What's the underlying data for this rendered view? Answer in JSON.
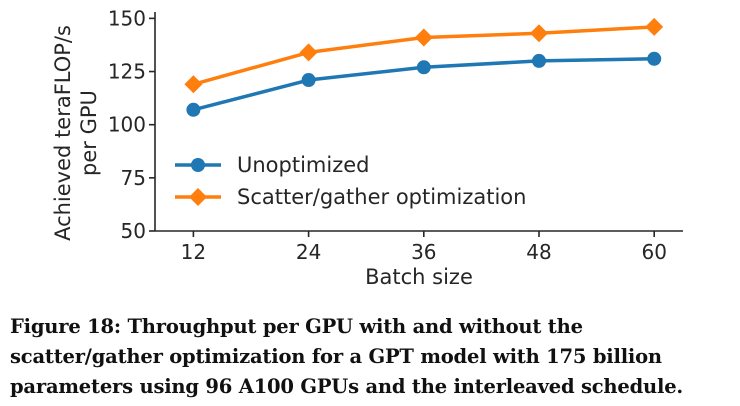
{
  "chart_data": {
    "type": "line",
    "x": [
      12,
      24,
      36,
      48,
      60
    ],
    "xticks": [
      "12",
      "24",
      "36",
      "48",
      "60"
    ],
    "yticks": [
      "50",
      "75",
      "100",
      "125",
      "150"
    ],
    "ytick_values": [
      50,
      75,
      100,
      125,
      150
    ],
    "xlim": [
      8,
      63
    ],
    "ylim": [
      50,
      153
    ],
    "xlabel": "Batch size",
    "ylabel_line1": "Achieved teraFLOP/s",
    "ylabel_line2": "per GPU",
    "legend_position": "center-left",
    "grid": false,
    "series": [
      {
        "name": "Unoptimized",
        "color": "#1f77b4",
        "marker": "circle",
        "values": [
          107,
          121,
          127,
          130,
          131
        ]
      },
      {
        "name": "Scatter/gather optimization",
        "color": "#ff7f0e",
        "marker": "diamond",
        "values": [
          119,
          134,
          141,
          143,
          146
        ]
      }
    ]
  },
  "caption": "Figure 18: Throughput per GPU with and without the scatter/gather optimization for a GPT model with 175 billion parameters using 96 A100 GPUs and the interleaved schedule."
}
